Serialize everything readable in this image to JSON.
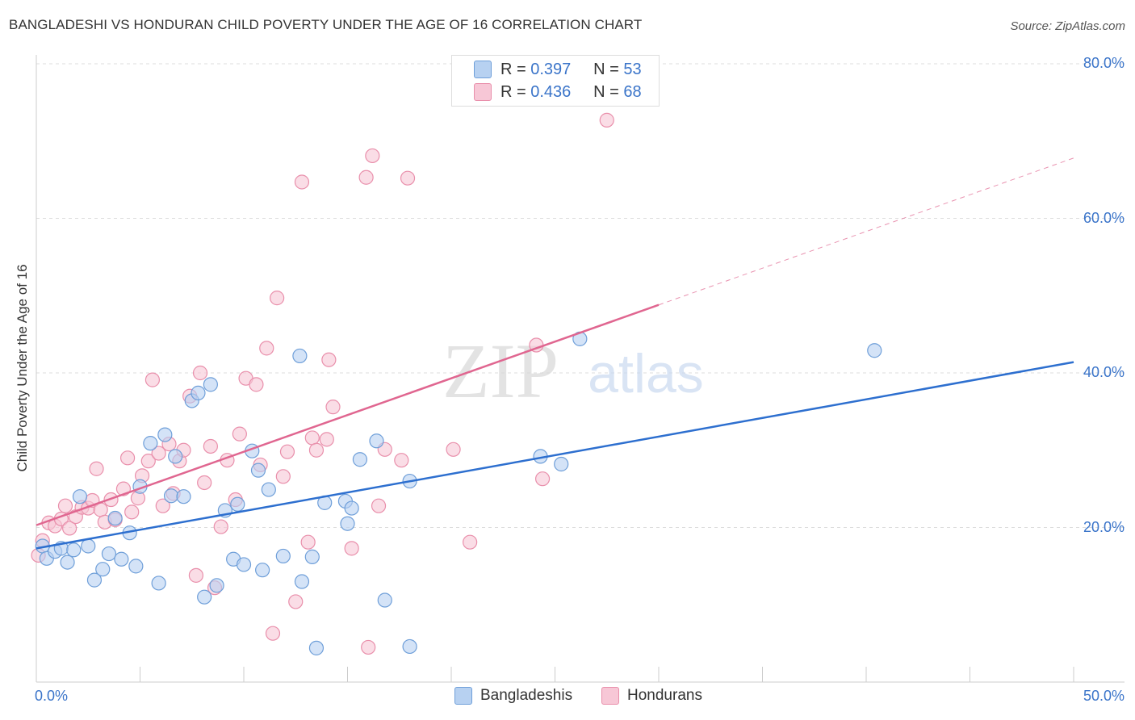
{
  "title": "BANGLADESHI VS HONDURAN CHILD POVERTY UNDER THE AGE OF 16 CORRELATION CHART",
  "source": "Source: ZipAtlas.com",
  "watermark": {
    "zip": "ZIP",
    "atlas": "atlas"
  },
  "legend": {
    "r_label": "R =",
    "n_label": "N =",
    "bangladeshis": {
      "r": "0.397",
      "n": "53"
    },
    "hondurans": {
      "r": "0.436",
      "n": "68"
    }
  },
  "colors": {
    "bangladeshis_fill": "#b7d1f1",
    "bangladeshis_stroke": "#6f9fd9",
    "bangladeshis_line": "#2d6fcf",
    "hondurans_fill": "#f7c7d6",
    "hondurans_stroke": "#e98fab",
    "hondurans_line": "#e06690",
    "axis_text": "#3a74c9",
    "grid": "#dddddd"
  },
  "chart_data": {
    "type": "scatter",
    "title": "BANGLADESHI VS HONDURAN CHILD POVERTY UNDER THE AGE OF 16 CORRELATION CHART",
    "xlabel": "",
    "ylabel": "Child Poverty Under the Age of 16",
    "xlim": [
      0,
      50
    ],
    "ylim": [
      0,
      80
    ],
    "x_tick_labels": [
      "0.0%",
      "50.0%"
    ],
    "y_tick_values": [
      20,
      40,
      60,
      80
    ],
    "y_tick_labels": [
      "20.0%",
      "40.0%",
      "60.0%",
      "80.0%"
    ],
    "grid": true,
    "legend_position": "bottom",
    "series": [
      {
        "name": "Bangladeshis",
        "points": [
          [
            0.3,
            17.6
          ],
          [
            0.5,
            16.0
          ],
          [
            0.9,
            16.9
          ],
          [
            1.2,
            17.3
          ],
          [
            1.5,
            15.5
          ],
          [
            1.8,
            17.1
          ],
          [
            2.1,
            24.0
          ],
          [
            2.5,
            17.6
          ],
          [
            2.8,
            13.2
          ],
          [
            3.2,
            14.6
          ],
          [
            3.5,
            16.6
          ],
          [
            3.8,
            21.2
          ],
          [
            4.1,
            15.9
          ],
          [
            4.5,
            19.3
          ],
          [
            4.8,
            15.0
          ],
          [
            5.0,
            25.3
          ],
          [
            5.5,
            30.9
          ],
          [
            5.9,
            12.8
          ],
          [
            6.2,
            32.0
          ],
          [
            6.5,
            24.1
          ],
          [
            6.7,
            29.2
          ],
          [
            7.1,
            24.0
          ],
          [
            7.5,
            36.4
          ],
          [
            7.8,
            37.4
          ],
          [
            8.1,
            11.0
          ],
          [
            8.4,
            38.5
          ],
          [
            8.7,
            12.5
          ],
          [
            9.1,
            22.2
          ],
          [
            9.5,
            15.9
          ],
          [
            9.7,
            23.0
          ],
          [
            10.0,
            15.2
          ],
          [
            10.4,
            29.9
          ],
          [
            10.7,
            27.4
          ],
          [
            10.9,
            14.5
          ],
          [
            11.2,
            24.9
          ],
          [
            11.9,
            16.3
          ],
          [
            12.7,
            42.2
          ],
          [
            12.8,
            13.0
          ],
          [
            13.3,
            16.2
          ],
          [
            13.5,
            4.4
          ],
          [
            13.9,
            23.2
          ],
          [
            14.9,
            23.4
          ],
          [
            15.0,
            20.5
          ],
          [
            15.2,
            22.5
          ],
          [
            15.6,
            28.8
          ],
          [
            16.4,
            31.2
          ],
          [
            16.8,
            10.6
          ],
          [
            18.0,
            4.6
          ],
          [
            18.0,
            26.0
          ],
          [
            24.3,
            29.2
          ],
          [
            25.3,
            28.2
          ],
          [
            26.2,
            44.4
          ],
          [
            40.4,
            42.9
          ]
        ]
      },
      {
        "name": "Hondurans",
        "points": [
          [
            0.1,
            16.4
          ],
          [
            0.3,
            18.3
          ],
          [
            0.6,
            20.6
          ],
          [
            0.9,
            20.2
          ],
          [
            1.2,
            21.1
          ],
          [
            1.4,
            22.8
          ],
          [
            1.6,
            19.9
          ],
          [
            1.9,
            21.4
          ],
          [
            2.2,
            22.6
          ],
          [
            2.5,
            22.5
          ],
          [
            2.7,
            23.5
          ],
          [
            2.9,
            27.6
          ],
          [
            3.1,
            22.3
          ],
          [
            3.3,
            20.7
          ],
          [
            3.6,
            23.6
          ],
          [
            3.8,
            21.0
          ],
          [
            4.2,
            25.0
          ],
          [
            4.4,
            29.0
          ],
          [
            4.6,
            22.0
          ],
          [
            4.9,
            23.8
          ],
          [
            5.1,
            26.7
          ],
          [
            5.4,
            28.6
          ],
          [
            5.6,
            39.1
          ],
          [
            5.9,
            29.6
          ],
          [
            6.1,
            22.8
          ],
          [
            6.4,
            30.8
          ],
          [
            6.6,
            24.4
          ],
          [
            6.9,
            28.6
          ],
          [
            7.1,
            30.0
          ],
          [
            7.4,
            37.0
          ],
          [
            7.7,
            13.8
          ],
          [
            7.9,
            40.0
          ],
          [
            8.1,
            25.8
          ],
          [
            8.4,
            30.5
          ],
          [
            8.6,
            12.2
          ],
          [
            8.9,
            20.1
          ],
          [
            9.2,
            28.7
          ],
          [
            9.6,
            23.6
          ],
          [
            9.8,
            32.1
          ],
          [
            10.1,
            39.3
          ],
          [
            10.6,
            38.5
          ],
          [
            10.8,
            28.1
          ],
          [
            11.1,
            43.2
          ],
          [
            11.4,
            6.3
          ],
          [
            11.6,
            49.7
          ],
          [
            11.9,
            26.6
          ],
          [
            12.1,
            29.8
          ],
          [
            12.5,
            10.4
          ],
          [
            12.8,
            64.7
          ],
          [
            13.1,
            18.1
          ],
          [
            13.3,
            31.6
          ],
          [
            13.5,
            30.0
          ],
          [
            14.0,
            31.4
          ],
          [
            14.1,
            41.7
          ],
          [
            14.3,
            35.6
          ],
          [
            15.2,
            17.3
          ],
          [
            15.9,
            65.3
          ],
          [
            16.0,
            4.5
          ],
          [
            16.2,
            68.1
          ],
          [
            16.5,
            22.8
          ],
          [
            16.8,
            30.1
          ],
          [
            17.6,
            28.7
          ],
          [
            17.9,
            65.2
          ],
          [
            20.1,
            30.1
          ],
          [
            20.9,
            18.1
          ],
          [
            24.1,
            43.6
          ],
          [
            24.4,
            26.3
          ],
          [
            27.5,
            72.7
          ]
        ]
      }
    ],
    "trend_lines": [
      {
        "series": "Bangladeshis",
        "x": [
          0,
          50
        ],
        "y": [
          17.3,
          41.4
        ]
      },
      {
        "series": "Hondurans",
        "x": [
          0,
          30
        ],
        "y": [
          20.3,
          48.8
        ],
        "dashed_extension_to": [
          50,
          67.8
        ]
      }
    ]
  },
  "bottom_legend": {
    "bangladeshis": "Bangladeshis",
    "hondurans": "Hondurans"
  }
}
